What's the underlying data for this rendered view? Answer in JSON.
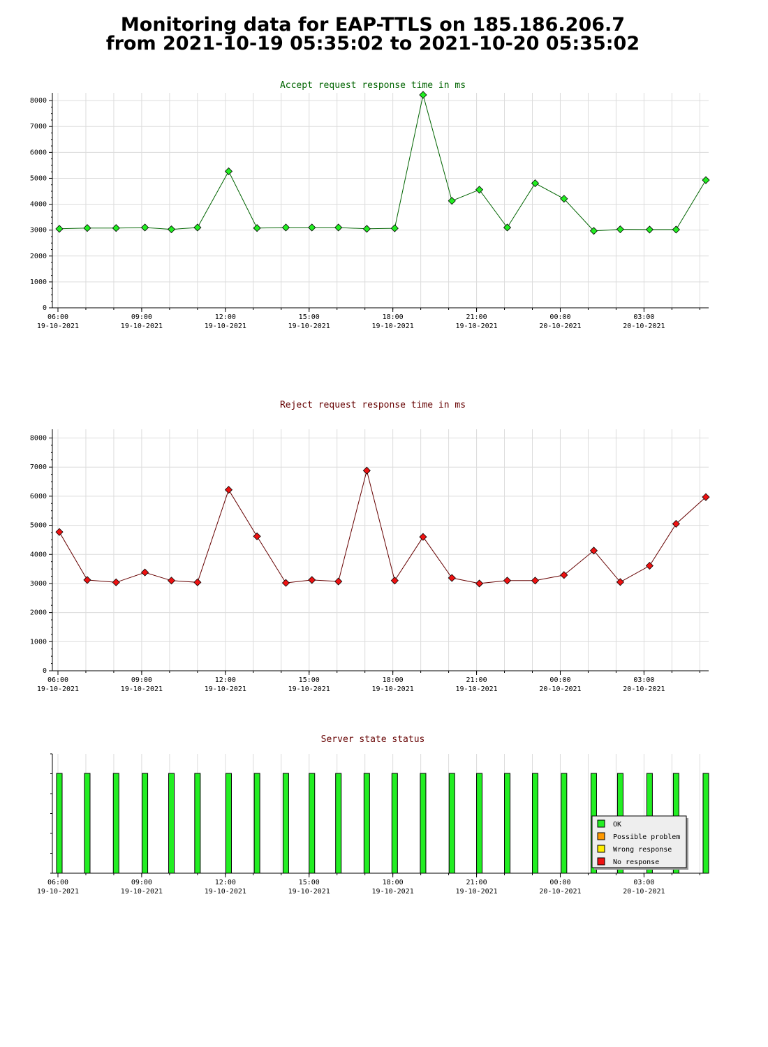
{
  "page": {
    "title_line1": "Monitoring data for EAP-TTLS on 185.186.206.7",
    "title_line2": "from 2021-10-19 05:35:02 to 2021-10-20 05:35:02"
  },
  "chart_data": [
    {
      "type": "line",
      "title": "Accept request response time in ms",
      "title_color": "#006400",
      "line_color": "#006400",
      "marker_color": "#22ee22",
      "ylim": [
        0,
        8300
      ],
      "yticks": [
        0,
        1000,
        2000,
        3000,
        4000,
        5000,
        6000,
        7000,
        8000
      ],
      "x_ticks": [
        {
          "time": "06:00",
          "date": "19-10-2021"
        },
        {
          "time": "09:00",
          "date": "19-10-2021"
        },
        {
          "time": "12:00",
          "date": "19-10-2021"
        },
        {
          "time": "15:00",
          "date": "19-10-2021"
        },
        {
          "time": "18:00",
          "date": "19-10-2021"
        },
        {
          "time": "21:00",
          "date": "19-10-2021"
        },
        {
          "time": "00:00",
          "date": "20-10-2021"
        },
        {
          "time": "03:00",
          "date": "20-10-2021"
        }
      ],
      "xlim": [
        "2021-10-19 05:48",
        "2021-10-20 05:19"
      ],
      "x": [
        "2021-10-19 06:03",
        "2021-10-19 07:03",
        "2021-10-19 08:05",
        "2021-10-19 09:07",
        "2021-10-19 10:04",
        "2021-10-19 11:00",
        "2021-10-19 12:07",
        "2021-10-19 13:08",
        "2021-10-19 14:10",
        "2021-10-19 15:06",
        "2021-10-19 16:03",
        "2021-10-19 17:04",
        "2021-10-19 18:04",
        "2021-10-19 19:05",
        "2021-10-19 20:07",
        "2021-10-19 21:06",
        "2021-10-19 22:06",
        "2021-10-19 23:06",
        "2021-10-20 00:08",
        "2021-10-20 01:12",
        "2021-10-20 02:09",
        "2021-10-20 03:12",
        "2021-10-20 04:09",
        "2021-10-20 05:13"
      ],
      "values": [
        3050,
        3080,
        3080,
        3100,
        3030,
        3100,
        5270,
        3080,
        3100,
        3100,
        3100,
        3050,
        3070,
        8220,
        4130,
        4560,
        3100,
        4810,
        4210,
        2970,
        3030,
        3020,
        3020,
        4930
      ]
    },
    {
      "type": "line",
      "title": "Reject request response time in ms",
      "title_color": "#660000",
      "line_color": "#660000",
      "marker_color": "#ee1111",
      "ylim": [
        0,
        8300
      ],
      "yticks": [
        0,
        1000,
        2000,
        3000,
        4000,
        5000,
        6000,
        7000,
        8000
      ],
      "x_ticks": [
        {
          "time": "06:00",
          "date": "19-10-2021"
        },
        {
          "time": "09:00",
          "date": "19-10-2021"
        },
        {
          "time": "12:00",
          "date": "19-10-2021"
        },
        {
          "time": "15:00",
          "date": "19-10-2021"
        },
        {
          "time": "18:00",
          "date": "19-10-2021"
        },
        {
          "time": "21:00",
          "date": "19-10-2021"
        },
        {
          "time": "00:00",
          "date": "20-10-2021"
        },
        {
          "time": "03:00",
          "date": "20-10-2021"
        }
      ],
      "xlim": [
        "2021-10-19 05:48",
        "2021-10-20 05:19"
      ],
      "x": [
        "2021-10-19 06:03",
        "2021-10-19 07:03",
        "2021-10-19 08:05",
        "2021-10-19 09:07",
        "2021-10-19 10:04",
        "2021-10-19 11:00",
        "2021-10-19 12:07",
        "2021-10-19 13:08",
        "2021-10-19 14:10",
        "2021-10-19 15:06",
        "2021-10-19 16:03",
        "2021-10-19 17:04",
        "2021-10-19 18:04",
        "2021-10-19 19:05",
        "2021-10-19 20:07",
        "2021-10-19 21:06",
        "2021-10-19 22:06",
        "2021-10-19 23:06",
        "2021-10-20 00:08",
        "2021-10-20 01:12",
        "2021-10-20 02:09",
        "2021-10-20 03:12",
        "2021-10-20 04:09",
        "2021-10-20 05:13"
      ],
      "values": [
        4770,
        3120,
        3040,
        3380,
        3100,
        3040,
        6220,
        4620,
        3020,
        3120,
        3070,
        6880,
        3100,
        4600,
        3190,
        3000,
        3100,
        3100,
        3290,
        4130,
        3050,
        3610,
        5050,
        5970
      ]
    },
    {
      "type": "bar",
      "title": "Server state status",
      "title_color": "#660000",
      "x_ticks": [
        {
          "time": "06:00",
          "date": "19-10-2021"
        },
        {
          "time": "09:00",
          "date": "19-10-2021"
        },
        {
          "time": "12:00",
          "date": "19-10-2021"
        },
        {
          "time": "15:00",
          "date": "19-10-2021"
        },
        {
          "time": "18:00",
          "date": "19-10-2021"
        },
        {
          "time": "21:00",
          "date": "19-10-2021"
        },
        {
          "time": "00:00",
          "date": "20-10-2021"
        },
        {
          "time": "03:00",
          "date": "20-10-2021"
        }
      ],
      "xlim": [
        "2021-10-19 05:48",
        "2021-10-20 05:19"
      ],
      "x": [
        "2021-10-19 06:03",
        "2021-10-19 07:03",
        "2021-10-19 08:05",
        "2021-10-19 09:07",
        "2021-10-19 10:04",
        "2021-10-19 11:00",
        "2021-10-19 12:07",
        "2021-10-19 13:08",
        "2021-10-19 14:10",
        "2021-10-19 15:06",
        "2021-10-19 16:03",
        "2021-10-19 17:04",
        "2021-10-19 18:04",
        "2021-10-19 19:05",
        "2021-10-19 20:07",
        "2021-10-19 21:06",
        "2021-10-19 22:06",
        "2021-10-19 23:06",
        "2021-10-20 00:08",
        "2021-10-20 01:12",
        "2021-10-20 02:09",
        "2021-10-20 03:12",
        "2021-10-20 04:09",
        "2021-10-20 05:13"
      ],
      "status": [
        "OK",
        "OK",
        "OK",
        "OK",
        "OK",
        "OK",
        "OK",
        "OK",
        "OK",
        "OK",
        "OK",
        "OK",
        "OK",
        "OK",
        "OK",
        "OK",
        "OK",
        "OK",
        "OK",
        "OK",
        "OK",
        "OK",
        "OK",
        "OK"
      ],
      "legend_placement": "bottom-right",
      "legend": [
        {
          "label": "OK",
          "color": "#22ee22"
        },
        {
          "label": "Possible problem",
          "color": "#ff9900"
        },
        {
          "label": "Wrong response",
          "color": "#ffee00"
        },
        {
          "label": "No response",
          "color": "#ee1111"
        }
      ]
    }
  ]
}
